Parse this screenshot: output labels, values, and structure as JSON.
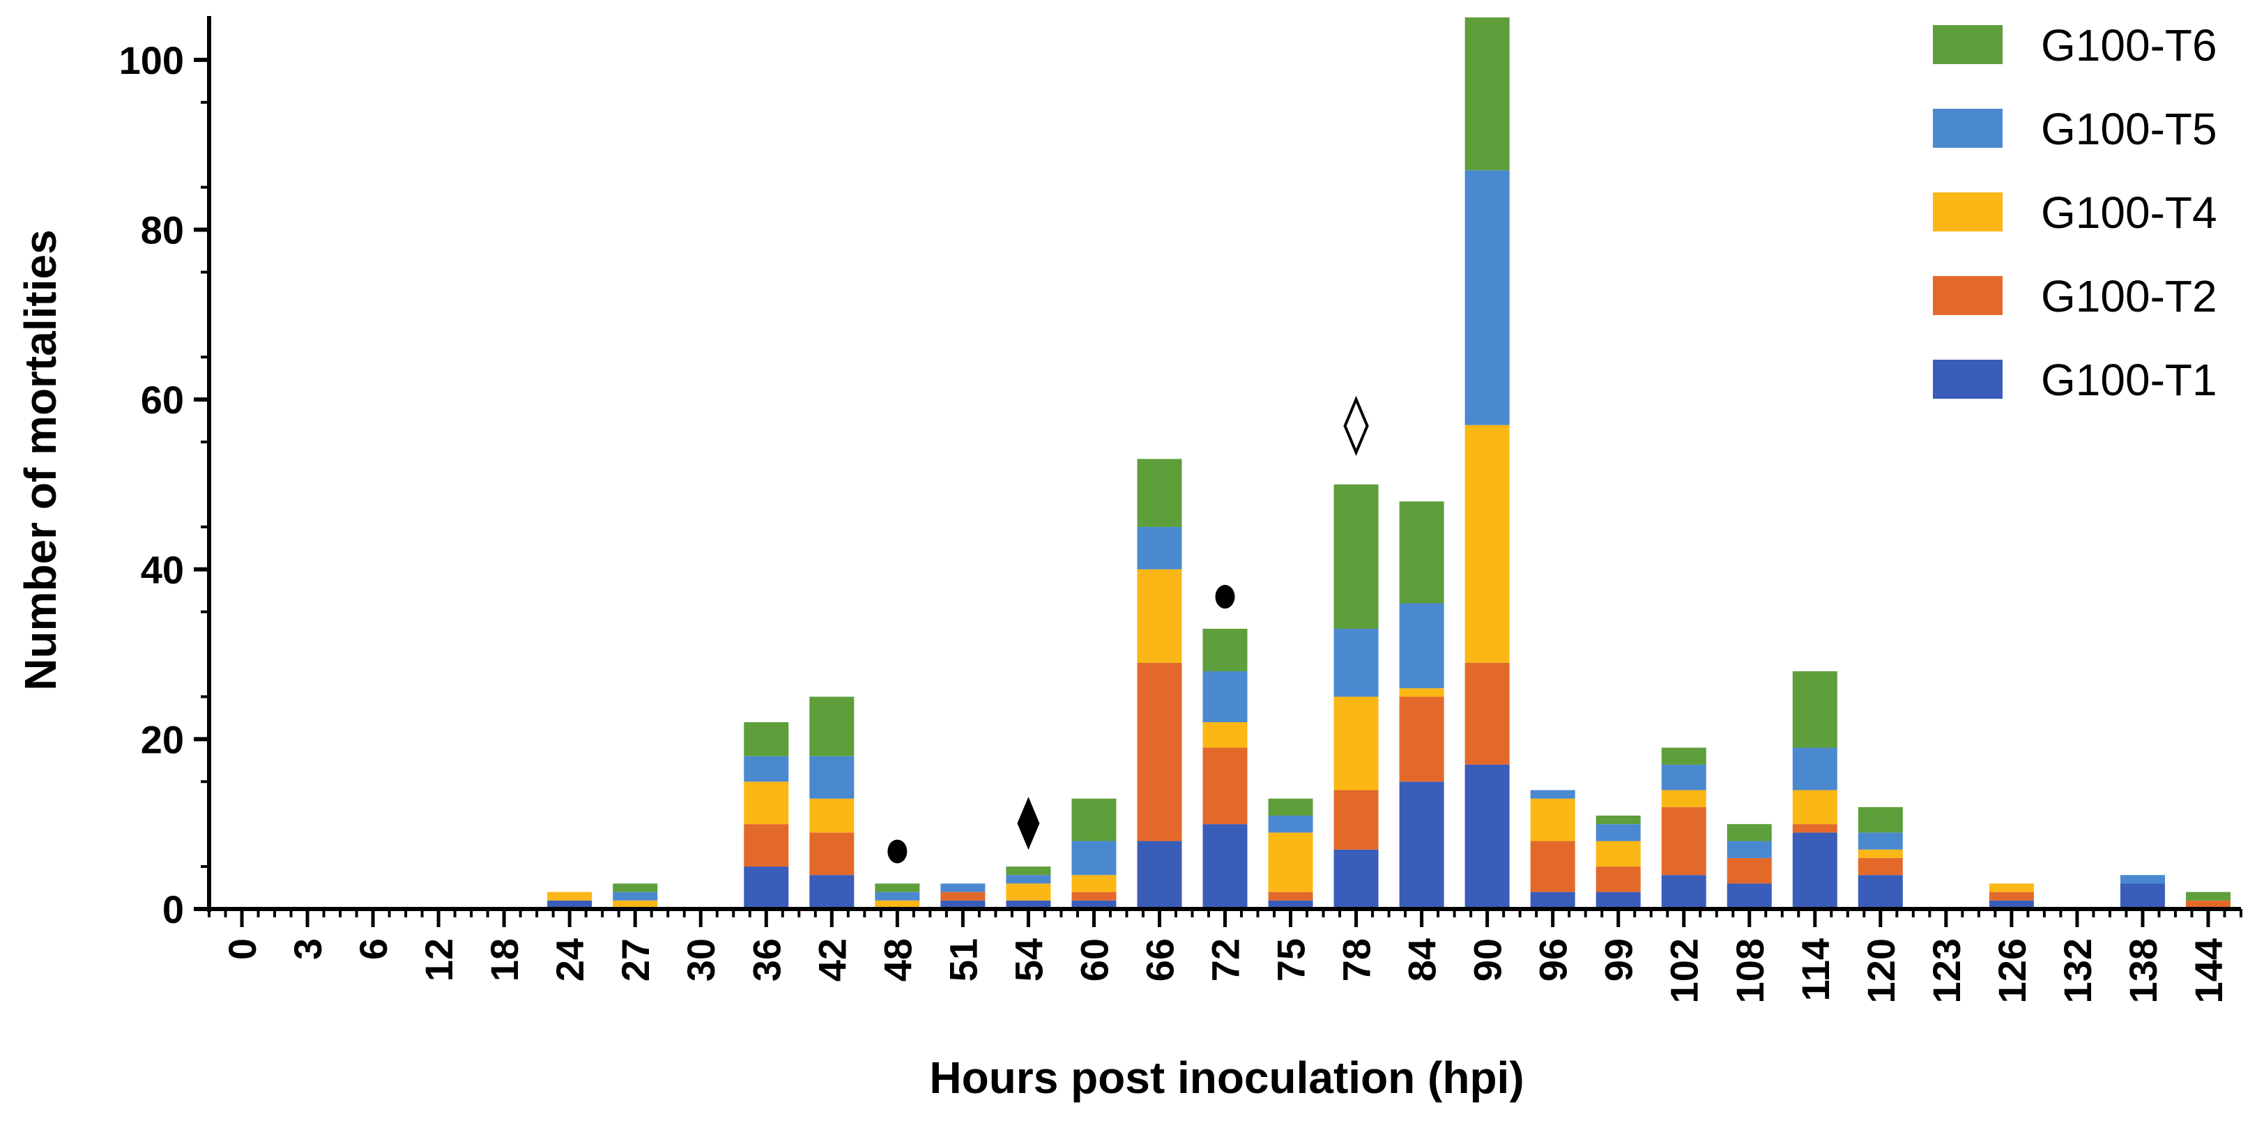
{
  "chart_data": {
    "type": "bar",
    "stacked": true,
    "title": "",
    "xlabel": "Hours post inoculation (hpi)",
    "ylabel": "Number of mortalities",
    "ylim": [
      0,
      105
    ],
    "yticks": [
      0,
      20,
      40,
      60,
      80,
      100
    ],
    "grid": false,
    "legend_position": "top-right",
    "categories": [
      "0",
      "3",
      "6",
      "12",
      "18",
      "24",
      "27",
      "30",
      "36",
      "42",
      "48",
      "51",
      "54",
      "60",
      "66",
      "72",
      "75",
      "78",
      "84",
      "90",
      "96",
      "99",
      "102",
      "108",
      "114",
      "120",
      "123",
      "126",
      "132",
      "138",
      "144"
    ],
    "series": [
      {
        "name": "G100-T1",
        "color": "#3A5DB9",
        "values": [
          0,
          0,
          0,
          0,
          0,
          1,
          0,
          0,
          5,
          4,
          0,
          1,
          1,
          1,
          8,
          10,
          1,
          7,
          15,
          17,
          2,
          2,
          4,
          3,
          9,
          4,
          0,
          1,
          0,
          3,
          0
        ]
      },
      {
        "name": "G100-T2",
        "color": "#E3692A",
        "values": [
          0,
          0,
          0,
          0,
          0,
          0,
          0,
          0,
          5,
          5,
          0,
          1,
          0,
          1,
          21,
          9,
          1,
          7,
          10,
          12,
          6,
          3,
          8,
          3,
          1,
          2,
          0,
          1,
          0,
          0,
          1
        ]
      },
      {
        "name": "G100-T4",
        "color": "#FBB716",
        "values": [
          0,
          0,
          0,
          0,
          0,
          1,
          1,
          0,
          5,
          4,
          1,
          0,
          2,
          2,
          11,
          3,
          7,
          11,
          1,
          28,
          5,
          3,
          2,
          0,
          4,
          1,
          0,
          1,
          0,
          0,
          0
        ]
      },
      {
        "name": "G100-T5",
        "color": "#4A89CF",
        "values": [
          0,
          0,
          0,
          0,
          0,
          0,
          1,
          0,
          3,
          5,
          1,
          1,
          1,
          4,
          5,
          6,
          2,
          8,
          10,
          30,
          1,
          2,
          3,
          2,
          5,
          2,
          0,
          0,
          0,
          1,
          0
        ]
      },
      {
        "name": "G100-T6",
        "color": "#5E9E3B",
        "values": [
          0,
          0,
          0,
          0,
          0,
          0,
          1,
          0,
          4,
          7,
          1,
          0,
          1,
          5,
          8,
          5,
          2,
          17,
          12,
          18,
          0,
          1,
          2,
          2,
          9,
          3,
          0,
          0,
          0,
          0,
          1
        ]
      }
    ],
    "annotations": [
      {
        "category": "48",
        "symbol": "●",
        "label": "filled-circle"
      },
      {
        "category": "54",
        "symbol": "♦",
        "label": "filled-diamond"
      },
      {
        "category": "72",
        "symbol": "●",
        "label": "filled-circle"
      },
      {
        "category": "78",
        "symbol": "◊",
        "label": "open-diamond"
      }
    ]
  }
}
